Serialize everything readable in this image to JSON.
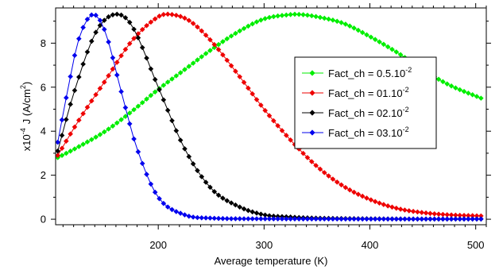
{
  "chart_data": {
    "type": "line",
    "xlabel": "Average temperature (K)",
    "ylabel_parts": {
      "prefix": "x10",
      "exp": "-4",
      "main": "J (A/cm",
      "sup": "2",
      "suffix": ")"
    },
    "xlim": [
      103,
      510
    ],
    "ylim": [
      -0.25,
      9.6
    ],
    "x_ticks": [
      200,
      300,
      400,
      500
    ],
    "y_ticks": [
      0,
      2,
      4,
      6,
      8
    ],
    "grid": false,
    "legend_position": "right",
    "series": [
      {
        "name": "Fact_ch = 0.5.10",
        "name_sup": "-2",
        "color": "#00ee00",
        "x": [
          105,
          125,
          150,
          175,
          200,
          225,
          250,
          275,
          300,
          325,
          335,
          350,
          375,
          400,
          425,
          450,
          475,
          505
        ],
        "y": [
          2.8,
          3.3,
          4.0,
          4.9,
          5.9,
          6.8,
          7.7,
          8.5,
          9.1,
          9.3,
          9.3,
          9.2,
          8.9,
          8.3,
          7.6,
          6.8,
          6.1,
          5.5
        ]
      },
      {
        "name": "Fact_ch = 01.10",
        "name_sup": "-2",
        "color": "#ee0000",
        "x": [
          105,
          125,
          150,
          175,
          200,
          213,
          230,
          250,
          275,
          300,
          325,
          350,
          375,
          400,
          425,
          450,
          475,
          505
        ],
        "y": [
          2.9,
          4.5,
          6.3,
          8.1,
          9.2,
          9.3,
          9.0,
          8.1,
          6.6,
          5.0,
          3.6,
          2.4,
          1.5,
          0.9,
          0.5,
          0.3,
          0.2,
          0.15
        ]
      },
      {
        "name": "Fact_ch = 02.10",
        "name_sup": "-2",
        "color": "#000000",
        "x": [
          105,
          120,
          140,
          158,
          175,
          200,
          225,
          250,
          275,
          300,
          325,
          350,
          400,
          450,
          505
        ],
        "y": [
          3.1,
          5.7,
          8.4,
          9.3,
          8.8,
          6.0,
          3.2,
          1.4,
          0.6,
          0.2,
          0.1,
          0.05,
          0.02,
          0.01,
          0.01
        ]
      },
      {
        "name": "Fact_ch = 03.10",
        "name_sup": "-2",
        "color": "#0000ee",
        "x": [
          105,
          115,
          125,
          138,
          150,
          165,
          180,
          200,
          225,
          250,
          300,
          400,
          505
        ],
        "y": [
          3.5,
          6.0,
          8.2,
          9.3,
          8.5,
          5.8,
          3.2,
          1.0,
          0.2,
          0.05,
          0.02,
          0.01,
          0.01
        ]
      }
    ]
  }
}
